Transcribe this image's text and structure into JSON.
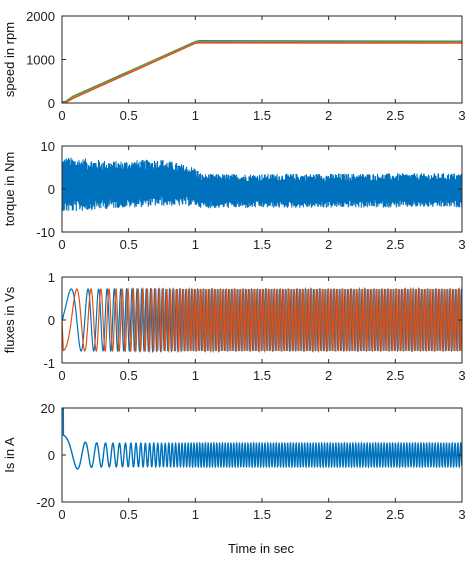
{
  "figure": {
    "xlabel": "Time in sec"
  },
  "colors": {
    "blue": "#0072bd",
    "orange": "#d95319",
    "yellow": "#edb120",
    "green": "#77ac30",
    "axes": "#262626"
  },
  "chart_data": [
    {
      "type": "line",
      "title": "",
      "ylabel": "speed in rpm",
      "xlim": [
        0,
        3
      ],
      "ylim": [
        0,
        2000
      ],
      "xticks": [
        0,
        0.5,
        1,
        1.5,
        2,
        2.5,
        3
      ],
      "xtick_labels": [
        "0",
        "0.5",
        "1",
        "1.5",
        "2",
        "2.5",
        "3"
      ],
      "yticks": [
        0,
        1000,
        2000
      ],
      "ytick_labels": [
        "0",
        "1000",
        "2000"
      ],
      "grid": false,
      "series": [
        {
          "color": "#77ac30",
          "x": [
            0,
            0.03,
            0.08,
            1.0,
            1.03,
            3.0
          ],
          "y": [
            20,
            40,
            150,
            1410,
            1430,
            1420
          ]
        },
        {
          "color": "#0072bd",
          "x": [
            0,
            0.03,
            0.08,
            1.0,
            1.03,
            3.0
          ],
          "y": [
            15,
            30,
            130,
            1395,
            1420,
            1405
          ]
        },
        {
          "color": "#edb120",
          "x": [
            0,
            0.03,
            0.08,
            1.0,
            1.03,
            3.0
          ],
          "y": [
            5,
            20,
            115,
            1385,
            1395,
            1390
          ]
        },
        {
          "color": "#d95319",
          "x": [
            0,
            0.03,
            0.08,
            1.0,
            1.03,
            3.0
          ],
          "y": [
            0,
            15,
            105,
            1375,
            1385,
            1380
          ]
        }
      ]
    },
    {
      "type": "line",
      "title": "",
      "ylabel": "torque in Nm",
      "xlim": [
        0,
        3
      ],
      "ylim": [
        -10,
        10
      ],
      "xticks": [
        0,
        0.5,
        1,
        1.5,
        2,
        2.5,
        3
      ],
      "xtick_labels": [
        "0",
        "0.5",
        "1",
        "1.5",
        "2",
        "2.5",
        "3"
      ],
      "yticks": [
        -10,
        0,
        10
      ],
      "ytick_labels": [
        "-10",
        "0",
        "10"
      ],
      "grid": false,
      "series": [
        {
          "color": "#0072bd",
          "kind": "noise_band",
          "x": [
            0,
            0.02,
            0.4,
            0.75,
            1.0,
            1.05,
            3.0
          ],
          "center": [
            1,
            1,
            1,
            1.5,
            0.5,
            -0.5,
            -0.3
          ],
          "amplitude": [
            6,
            6.5,
            5.5,
            5.5,
            4.5,
            4,
            4
          ]
        }
      ]
    },
    {
      "type": "line",
      "title": "",
      "ylabel": "fluxes in Vs",
      "xlim": [
        0,
        3
      ],
      "ylim": [
        -1,
        1
      ],
      "xticks": [
        0,
        0.5,
        1,
        1.5,
        2,
        2.5,
        3
      ],
      "xtick_labels": [
        "0",
        "0.5",
        "1",
        "1.5",
        "2",
        "2.5",
        "3"
      ],
      "yticks": [
        -1,
        0,
        1
      ],
      "ytick_labels": [
        "-1",
        "0",
        "1"
      ],
      "grid": false,
      "series": [
        {
          "color": "#0072bd",
          "kind": "chirp",
          "amplitude": 0.72,
          "phase": 0,
          "freq_start_hz": 2,
          "freq_end_hz": 47,
          "ramp_end_s": 1.0
        },
        {
          "color": "#d95319",
          "kind": "chirp",
          "amplitude": 0.72,
          "phase": -1.5708,
          "freq_start_hz": 2,
          "freq_end_hz": 47,
          "ramp_end_s": 1.0
        }
      ]
    },
    {
      "type": "line",
      "title": "",
      "ylabel": "Is in A",
      "xlim": [
        0,
        3
      ],
      "ylim": [
        -20,
        20
      ],
      "xticks": [
        0,
        0.5,
        1,
        1.5,
        2,
        2.5,
        3
      ],
      "xtick_labels": [
        "0",
        "0.5",
        "1",
        "1.5",
        "2",
        "2.5",
        "3"
      ],
      "yticks": [
        -20,
        0,
        20
      ],
      "ytick_labels": [
        "-20",
        "0",
        "20"
      ],
      "grid": false,
      "series": [
        {
          "color": "#0072bd",
          "kind": "current",
          "peak_start": 20,
          "steady_amplitude": 5,
          "freq_start_hz": 2,
          "freq_end_hz": 47,
          "ramp_end_s": 1.0
        }
      ]
    }
  ]
}
